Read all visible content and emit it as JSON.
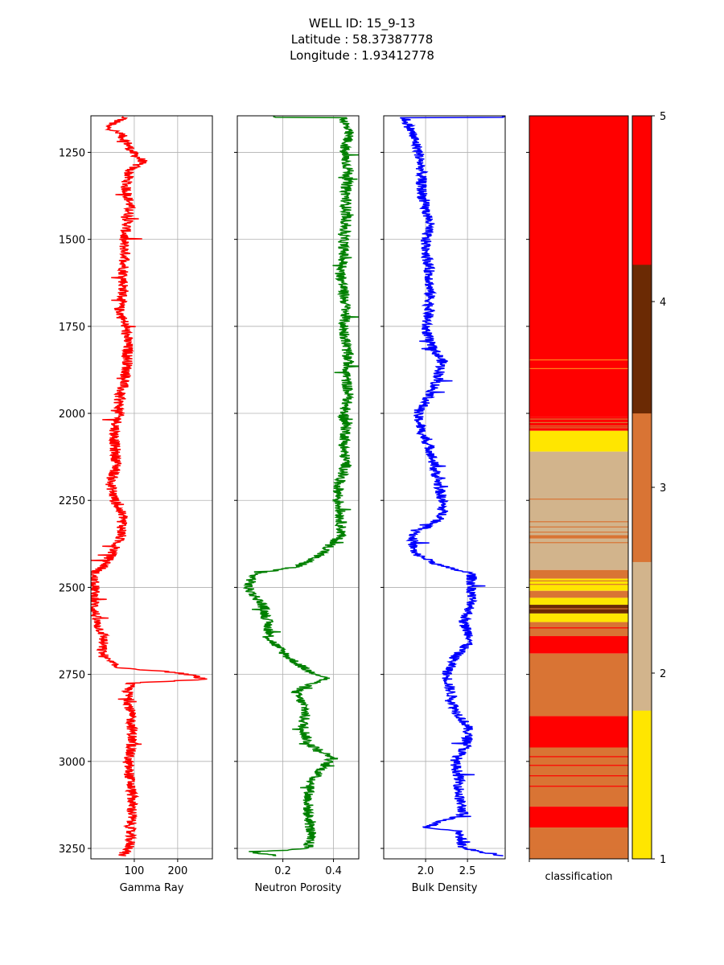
{
  "title": {
    "line1": "WELL ID: 15_9-13",
    "line2": "Latitude : 58.37387778",
    "line3": "Longitude : 1.93412778"
  },
  "chart_data": {
    "type": "line",
    "depth_axis": {
      "ylim": [
        3280,
        1145
      ],
      "inverted": true,
      "ticks": [
        1250,
        1500,
        1750,
        2000,
        2250,
        2500,
        2750,
        3000,
        3250
      ]
    },
    "tracks": [
      {
        "name": "gamma",
        "xlabel": "Gamma Ray",
        "xlim": [
          0,
          280
        ],
        "xticks": [
          100,
          200
        ],
        "color": "#ff0000",
        "grid": true,
        "profile": [
          [
            1150,
            80
          ],
          [
            1175,
            35
          ],
          [
            1200,
            70
          ],
          [
            1225,
            85
          ],
          [
            1250,
            95
          ],
          [
            1275,
            120
          ],
          [
            1300,
            90
          ],
          [
            1350,
            80
          ],
          [
            1400,
            90
          ],
          [
            1450,
            85
          ],
          [
            1500,
            75
          ],
          [
            1550,
            80
          ],
          [
            1600,
            75
          ],
          [
            1650,
            75
          ],
          [
            1700,
            65
          ],
          [
            1750,
            80
          ],
          [
            1800,
            85
          ],
          [
            1850,
            85
          ],
          [
            1900,
            80
          ],
          [
            1950,
            65
          ],
          [
            2000,
            65
          ],
          [
            2050,
            55
          ],
          [
            2100,
            55
          ],
          [
            2150,
            60
          ],
          [
            2200,
            45
          ],
          [
            2250,
            55
          ],
          [
            2300,
            75
          ],
          [
            2350,
            70
          ],
          [
            2400,
            50
          ],
          [
            2440,
            30
          ],
          [
            2460,
            5
          ],
          [
            2500,
            8
          ],
          [
            2550,
            8
          ],
          [
            2600,
            12
          ],
          [
            2640,
            30
          ],
          [
            2680,
            25
          ],
          [
            2700,
            30
          ],
          [
            2730,
            60
          ],
          [
            2745,
            200
          ],
          [
            2755,
            240
          ],
          [
            2765,
            260
          ],
          [
            2775,
            90
          ],
          [
            2800,
            85
          ],
          [
            2850,
            90
          ],
          [
            2900,
            95
          ],
          [
            2950,
            95
          ],
          [
            3000,
            85
          ],
          [
            3050,
            90
          ],
          [
            3100,
            95
          ],
          [
            3150,
            95
          ],
          [
            3200,
            90
          ],
          [
            3250,
            90
          ],
          [
            3270,
            70
          ]
        ]
      },
      {
        "name": "neutron",
        "xlabel": "Neutron Porosity",
        "xlim": [
          0.02,
          0.5
        ],
        "xticks": [
          0.2,
          0.4
        ],
        "color": "#008000",
        "grid": true,
        "profile": [
          [
            1150,
            0.44
          ],
          [
            1200,
            0.46
          ],
          [
            1250,
            0.44
          ],
          [
            1300,
            0.46
          ],
          [
            1350,
            0.45
          ],
          [
            1400,
            0.45
          ],
          [
            1450,
            0.45
          ],
          [
            1500,
            0.44
          ],
          [
            1550,
            0.44
          ],
          [
            1600,
            0.43
          ],
          [
            1650,
            0.44
          ],
          [
            1700,
            0.45
          ],
          [
            1750,
            0.44
          ],
          [
            1800,
            0.45
          ],
          [
            1850,
            0.46
          ],
          [
            1900,
            0.45
          ],
          [
            1950,
            0.46
          ],
          [
            2000,
            0.44
          ],
          [
            2050,
            0.45
          ],
          [
            2100,
            0.44
          ],
          [
            2150,
            0.45
          ],
          [
            2200,
            0.42
          ],
          [
            2250,
            0.42
          ],
          [
            2300,
            0.43
          ],
          [
            2350,
            0.43
          ],
          [
            2400,
            0.36
          ],
          [
            2440,
            0.26
          ],
          [
            2460,
            0.09
          ],
          [
            2500,
            0.06
          ],
          [
            2550,
            0.12
          ],
          [
            2600,
            0.14
          ],
          [
            2650,
            0.15
          ],
          [
            2700,
            0.22
          ],
          [
            2740,
            0.3
          ],
          [
            2760,
            0.38
          ],
          [
            2780,
            0.3
          ],
          [
            2800,
            0.25
          ],
          [
            2850,
            0.29
          ],
          [
            2900,
            0.28
          ],
          [
            2950,
            0.3
          ],
          [
            2990,
            0.4
          ],
          [
            3000,
            0.38
          ],
          [
            3050,
            0.32
          ],
          [
            3100,
            0.3
          ],
          [
            3150,
            0.3
          ],
          [
            3200,
            0.31
          ],
          [
            3250,
            0.3
          ],
          [
            3262,
            0.08
          ],
          [
            3270,
            0.18
          ]
        ]
      },
      {
        "name": "density",
        "xlabel": "Bulk Density",
        "xlim": [
          1.5,
          2.95
        ],
        "xticks": [
          2.0,
          2.5
        ],
        "color": "#0000ff",
        "grid": true,
        "profile": [
          [
            1150,
            1.75
          ],
          [
            1200,
            1.85
          ],
          [
            1250,
            1.92
          ],
          [
            1300,
            1.95
          ],
          [
            1350,
            1.95
          ],
          [
            1400,
            1.98
          ],
          [
            1450,
            2.05
          ],
          [
            1500,
            2.0
          ],
          [
            1550,
            2.02
          ],
          [
            1600,
            2.05
          ],
          [
            1650,
            2.05
          ],
          [
            1700,
            2.05
          ],
          [
            1750,
            2.0
          ],
          [
            1800,
            2.05
          ],
          [
            1850,
            2.2
          ],
          [
            1900,
            2.15
          ],
          [
            1950,
            2.05
          ],
          [
            2000,
            1.9
          ],
          [
            2050,
            1.95
          ],
          [
            2100,
            2.05
          ],
          [
            2150,
            2.1
          ],
          [
            2200,
            2.15
          ],
          [
            2250,
            2.2
          ],
          [
            2300,
            2.2
          ],
          [
            2350,
            1.85
          ],
          [
            2400,
            1.85
          ],
          [
            2440,
            2.2
          ],
          [
            2460,
            2.55
          ],
          [
            2500,
            2.55
          ],
          [
            2550,
            2.55
          ],
          [
            2600,
            2.45
          ],
          [
            2650,
            2.55
          ],
          [
            2700,
            2.35
          ],
          [
            2750,
            2.25
          ],
          [
            2800,
            2.3
          ],
          [
            2850,
            2.35
          ],
          [
            2900,
            2.5
          ],
          [
            2950,
            2.5
          ],
          [
            3000,
            2.35
          ],
          [
            3050,
            2.4
          ],
          [
            3100,
            2.4
          ],
          [
            3150,
            2.45
          ],
          [
            3190,
            2.0
          ],
          [
            3200,
            2.4
          ],
          [
            3250,
            2.45
          ],
          [
            3270,
            2.9
          ]
        ]
      }
    ],
    "classification": {
      "xlabel": "classification",
      "colorbar": {
        "min": 1,
        "max": 5,
        "ticks": [
          1,
          2,
          3,
          4,
          5
        ]
      },
      "classes": [
        {
          "value": 1,
          "color": "#ffe600"
        },
        {
          "value": 2,
          "color": "#d2b48c"
        },
        {
          "value": 3,
          "color": "#d97434"
        },
        {
          "value": 4,
          "color": "#6b2a04"
        },
        {
          "value": 5,
          "color": "#ff0000"
        }
      ],
      "intervals": [
        [
          1145,
          2010,
          5
        ],
        [
          2010,
          2050,
          5
        ],
        [
          2050,
          2060,
          1
        ],
        [
          2060,
          2110,
          1
        ],
        [
          2110,
          2350,
          2
        ],
        [
          2350,
          2360,
          3
        ],
        [
          2360,
          2450,
          2
        ],
        [
          2450,
          2475,
          3
        ],
        [
          2475,
          2510,
          1
        ],
        [
          2510,
          2530,
          3
        ],
        [
          2530,
          2550,
          1
        ],
        [
          2550,
          2575,
          4
        ],
        [
          2575,
          2600,
          1
        ],
        [
          2600,
          2640,
          3
        ],
        [
          2640,
          2690,
          5
        ],
        [
          2690,
          2870,
          3
        ],
        [
          2870,
          2960,
          5
        ],
        [
          2960,
          3130,
          3
        ],
        [
          3130,
          3190,
          5
        ],
        [
          3190,
          3280,
          3
        ]
      ]
    },
    "depth_axis_label": ""
  }
}
